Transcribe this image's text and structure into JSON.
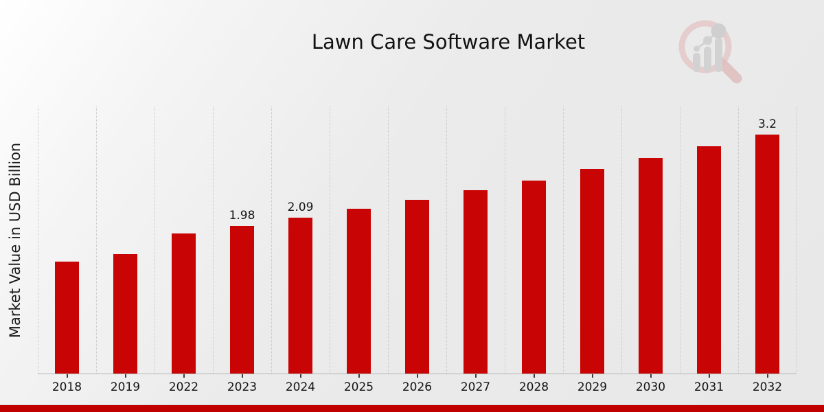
{
  "title": "Lawn Care Software Market",
  "ylabel": "Market Value in USD Billion",
  "colors": {
    "bar": "#c90404",
    "footer_bar": "#c00000",
    "gridline": "#c7c7c7",
    "axis_line": "#b3b3b3",
    "text": "#141414",
    "logo_ring": "#e4bfbf",
    "logo_bars": "#cdcdcd"
  },
  "logo": {
    "name": "magnifier-bar-chart-watermark"
  },
  "chart_data": {
    "type": "bar",
    "title": "Lawn Care Software Market",
    "xlabel": "",
    "ylabel": "Market Value in USD Billion",
    "categories": [
      "2018",
      "2019",
      "2022",
      "2023",
      "2024",
      "2025",
      "2026",
      "2027",
      "2028",
      "2029",
      "2030",
      "2031",
      "2032"
    ],
    "values": [
      1.5,
      1.6,
      1.88,
      1.98,
      2.09,
      2.21,
      2.33,
      2.46,
      2.59,
      2.74,
      2.89,
      3.05,
      3.2
    ],
    "data_labels": [
      "",
      "",
      "",
      "1.98",
      "2.09",
      "",
      "",
      "",
      "",
      "",
      "",
      "",
      "3.2"
    ],
    "ylim": [
      0,
      3.58
    ],
    "grid": "vertical dotted lines at category boundaries",
    "legend": "none",
    "bar_color": "#c90404"
  }
}
